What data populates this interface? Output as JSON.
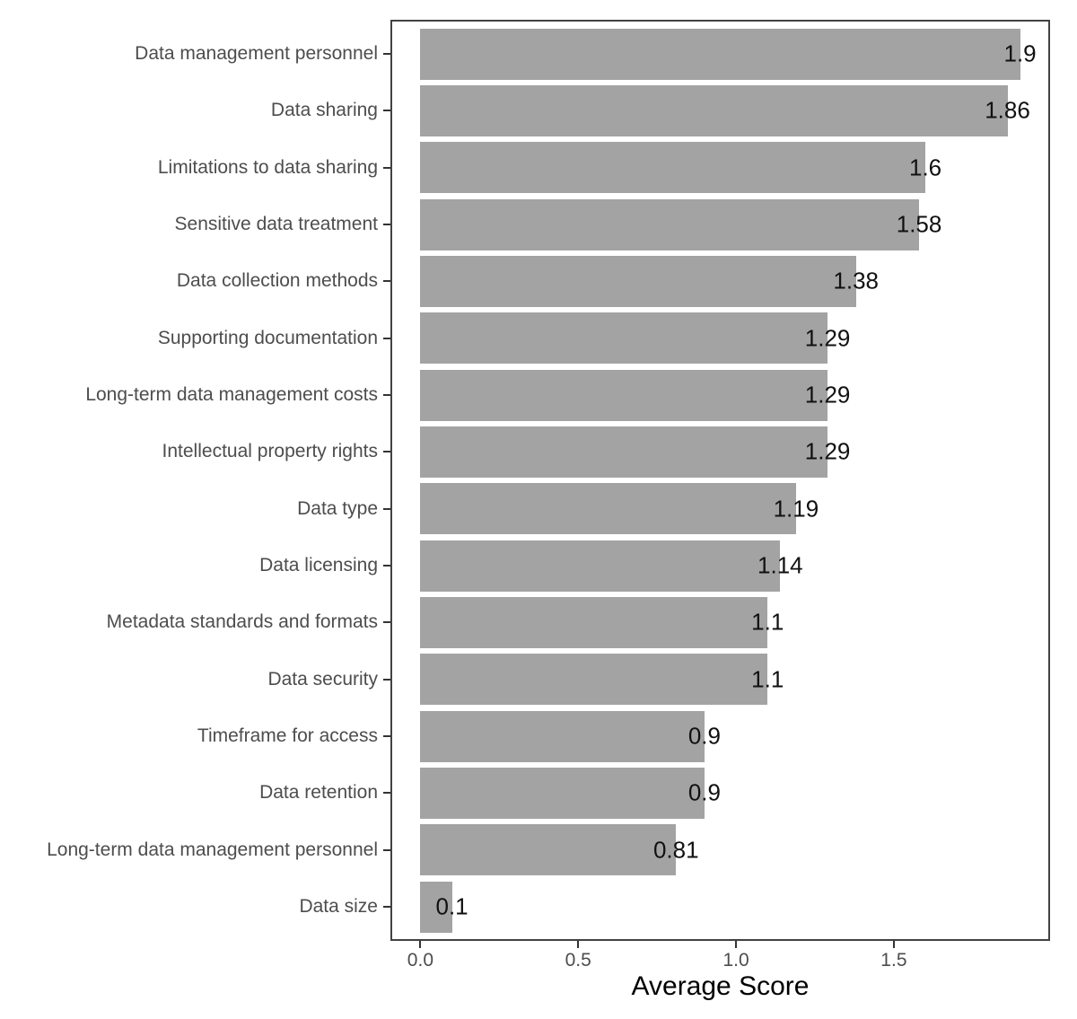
{
  "chart_data": {
    "type": "bar",
    "orientation": "horizontal",
    "title": "",
    "xlabel": "Average Score",
    "ylabel": "",
    "categories": [
      "Data management personnel",
      "Data sharing",
      "Limitations to data sharing",
      "Sensitive data treatment",
      "Data collection methods",
      "Supporting documentation",
      "Long-term data management costs",
      "Intellectual property rights",
      "Data type",
      "Data licensing",
      "Metadata standards and formats",
      "Data security",
      "Timeframe for access",
      "Data retention",
      "Long-term data management personnel",
      "Data size"
    ],
    "values": [
      1.9,
      1.86,
      1.6,
      1.58,
      1.38,
      1.29,
      1.29,
      1.29,
      1.19,
      1.14,
      1.1,
      1.1,
      0.9,
      0.9,
      0.81,
      0.1
    ],
    "value_labels": [
      "1.9",
      "1.86",
      "1.6",
      "1.58",
      "1.38",
      "1.29",
      "1.29",
      "1.29",
      "1.19",
      "1.14",
      "1.1",
      "1.1",
      "0.9",
      "0.9",
      "0.81",
      "0.1"
    ],
    "x_ticks": [
      {
        "value": 0.0,
        "label": "0.0"
      },
      {
        "value": 0.5,
        "label": "0.5"
      },
      {
        "value": 1.0,
        "label": "1.0"
      },
      {
        "value": 1.5,
        "label": "1.5"
      }
    ],
    "x_axis_range": [
      -0.095,
      1.995
    ],
    "grid": "off",
    "legend": "none",
    "colors": {
      "bar_fill": "#a3a3a3",
      "panel_border": "#424242",
      "axis_text": "#4d4d4d",
      "value_label_text": "#111111",
      "axis_title_text": "#000000",
      "tick_mark": "#333333",
      "background": "#ffffff"
    }
  }
}
